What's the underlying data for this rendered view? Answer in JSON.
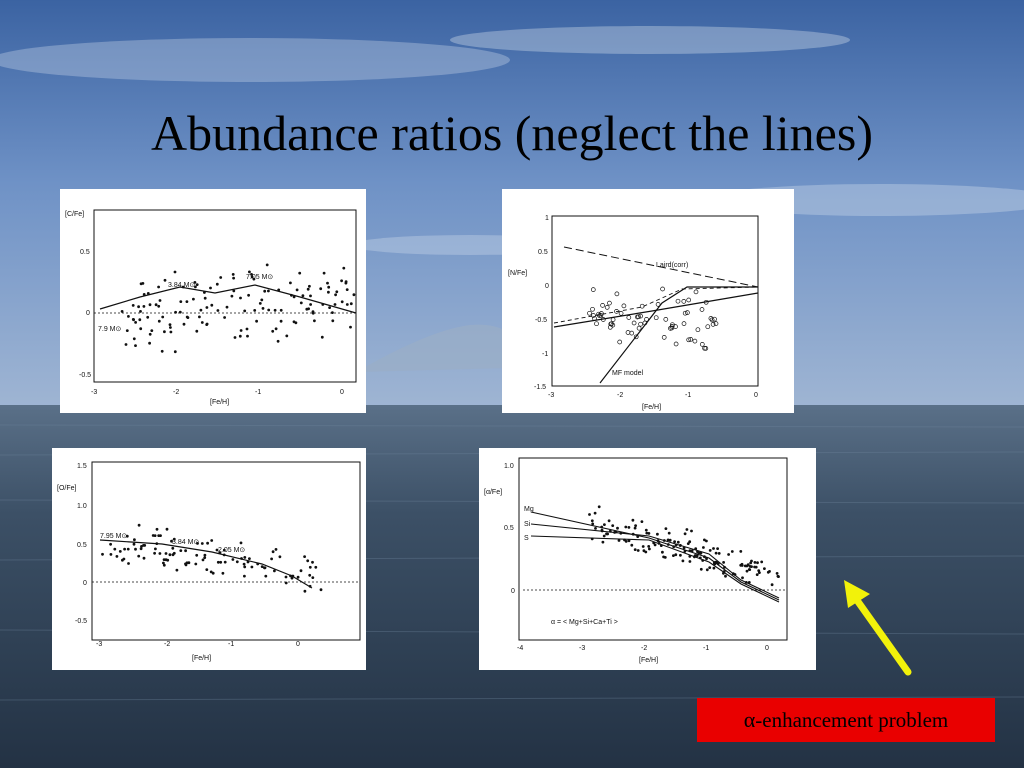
{
  "slide": {
    "title": "Abundance ratios (neglect the lines)",
    "caption_symbol": "α",
    "caption_text": "-enhancement problem",
    "colors": {
      "caption_bg": "#e90000",
      "arrow": "#f2f20a",
      "sky_top": "#3f6aa8",
      "sea": "#33495e"
    }
  },
  "panels": {
    "cfe": {
      "ylabel": "[C/Fe]",
      "xlabel": "[Fe/H]",
      "yticks": [
        "0.5",
        "0",
        "-0.5"
      ],
      "xticks": [
        "-3",
        "-2",
        "-1",
        "0"
      ],
      "model_labels": [
        "7.9 M⊙",
        "3.84 M⊙",
        "7.05 M⊙"
      ]
    },
    "nfe": {
      "ylabel": "[N/Fe]",
      "xlabel": "[Fe/H]",
      "yticks": [
        "1",
        "0.5",
        "0",
        "-0.5",
        "-1",
        "-1.5"
      ],
      "xticks": [
        "-3",
        "-2",
        "-1",
        "0"
      ],
      "annotations": [
        "Laird(corr)",
        "MF model"
      ]
    },
    "ofe": {
      "ylabel": "[O/Fe]",
      "xlabel": "[Fe/H]",
      "yticks": [
        "1.5",
        "1.0",
        "0.5",
        "0",
        "-0.5"
      ],
      "xticks": [
        "-3",
        "-2",
        "-1",
        "0"
      ],
      "model_labels": [
        "7.95 M⊙",
        "3.84 M⊙",
        "2.05 M⊙"
      ]
    },
    "afe": {
      "ylabel": "[α/Fe]",
      "xlabel": "[Fe/H]",
      "yticks": [
        "1.0",
        "0.5",
        "0"
      ],
      "xticks": [
        "-4",
        "-3",
        "-2",
        "-1",
        "0"
      ],
      "series_labels": [
        "Mg",
        "Si",
        "S"
      ],
      "footnote": "α = < Mg+Si+Ca+Ti >"
    }
  }
}
